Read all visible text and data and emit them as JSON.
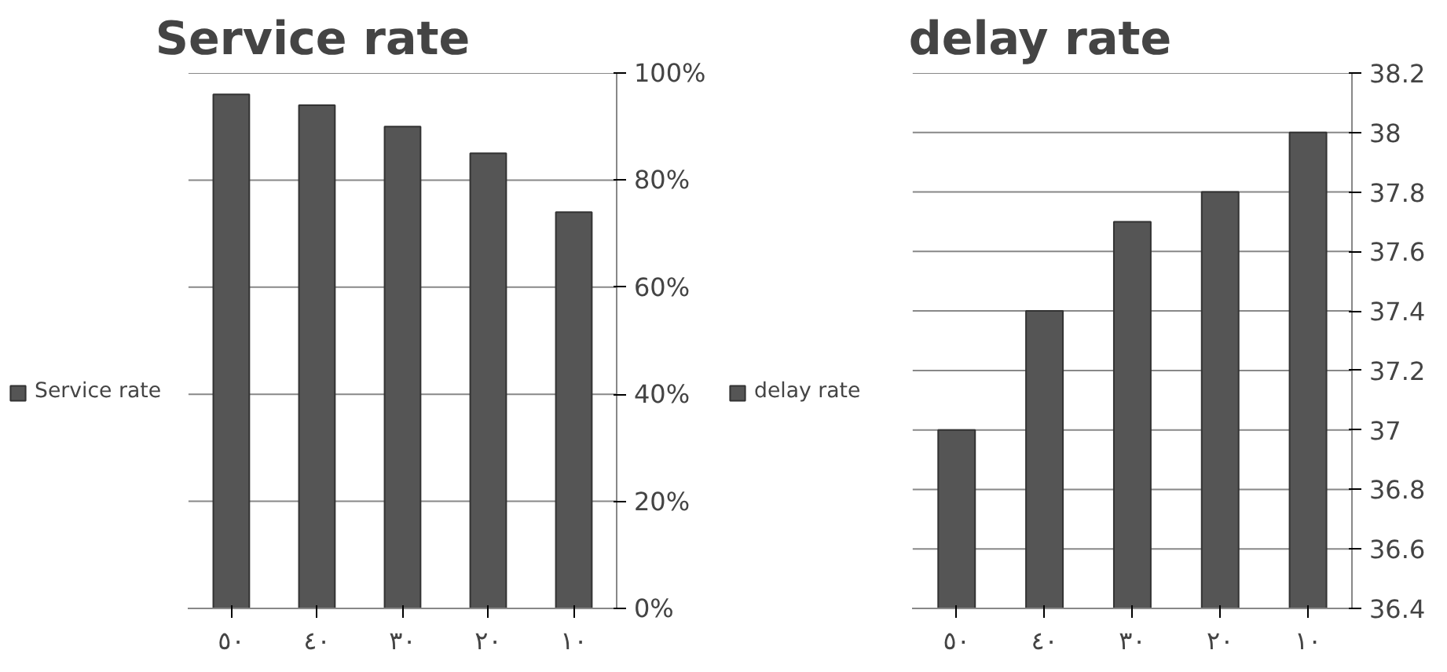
{
  "chart_data": [
    {
      "type": "bar",
      "title": "Service rate",
      "categories": [
        "٥٠",
        "٤٠",
        "٣٠",
        "٢٠",
        "١٠"
      ],
      "series": [
        {
          "name": "Service rate",
          "color": "#555555",
          "values": [
            96,
            94,
            90,
            85,
            74
          ]
        }
      ],
      "ylim": [
        0,
        100
      ],
      "yticks": [
        {
          "value": 0,
          "label": "0%"
        },
        {
          "value": 20,
          "label": "20%"
        },
        {
          "value": 40,
          "label": "40%"
        },
        {
          "value": 60,
          "label": "60%"
        },
        {
          "value": 80,
          "label": "80%"
        },
        {
          "value": 100,
          "label": "100%"
        }
      ],
      "grid": "y",
      "legend": "left"
    },
    {
      "type": "bar",
      "title": "delay rate",
      "categories": [
        "٥٠",
        "٤٠",
        "٣٠",
        "٢٠",
        "١٠"
      ],
      "series": [
        {
          "name": "delay rate",
          "color": "#555555",
          "values": [
            37.0,
            37.4,
            37.7,
            37.8,
            38.0
          ]
        }
      ],
      "ylim": [
        36.4,
        38.2
      ],
      "yticks": [
        36.4,
        36.6,
        36.8,
        37,
        37.2,
        37.4,
        37.6,
        37.8,
        38,
        38.2
      ],
      "grid": "y",
      "legend": "left"
    }
  ]
}
